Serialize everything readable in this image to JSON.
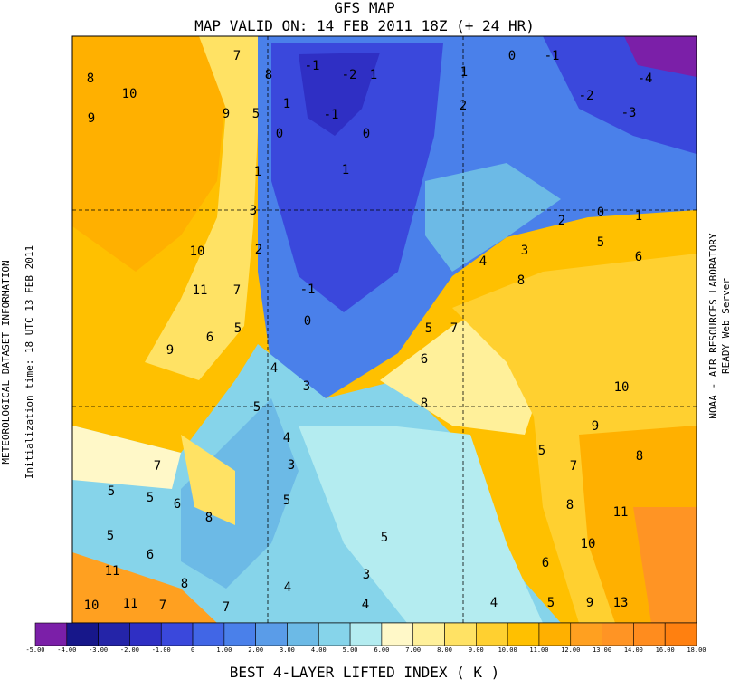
{
  "header": {
    "title": "GFS MAP",
    "subtitle": "MAP VALID ON: 14 FEB 2011 18Z (+ 24 HR)"
  },
  "left_labels": [
    "METEOROLOGICAL DATASET INFORMATION",
    "Initialization time: 18 UTC 13 FEB 2011"
  ],
  "right_labels": [
    "NOAA - AIR RESOURCES LABORATORY",
    "READY Web Server"
  ],
  "contour_labels": [
    8,
    10,
    9,
    7,
    8,
    9,
    5,
    -1,
    -2,
    1,
    1,
    0,
    -1,
    0,
    1,
    1,
    2,
    0,
    -1,
    -2,
    -4,
    -3,
    1,
    3,
    2,
    10,
    11,
    7,
    -1,
    0,
    9,
    6,
    5,
    5,
    7,
    6,
    4,
    3,
    2,
    0,
    1,
    5,
    6,
    8,
    4,
    3,
    8,
    5,
    10,
    4,
    3,
    5,
    9,
    8,
    7,
    7,
    5,
    5,
    6,
    8,
    5,
    8,
    11,
    5,
    6,
    5,
    10,
    6,
    11,
    8,
    3,
    4,
    10,
    11,
    7,
    7,
    4,
    4,
    5,
    9,
    13
  ],
  "colorbar": {
    "colors": [
      "#7b1fa8",
      "#17178a",
      "#2424a8",
      "#2f2fc4",
      "#3a48dc",
      "#4166e6",
      "#4a80ea",
      "#5a9ce8",
      "#6cbae6",
      "#86d4ea",
      "#b4ecf0",
      "#fff8c8",
      "#fff09a",
      "#ffe264",
      "#ffd030",
      "#ffc000",
      "#ffb000",
      "#ffa020",
      "#ff9424",
      "#ff8c1e",
      "#ff8010"
    ],
    "ticks": [
      {
        "value": -5,
        "label": "-5.00"
      },
      {
        "value": -4,
        "label": "-4.00"
      },
      {
        "value": -3,
        "label": "-3.00"
      },
      {
        "value": -2,
        "label": "-2.00"
      },
      {
        "value": -1,
        "label": "-1.00"
      },
      0,
      {
        "value": 1,
        "label": "1.00"
      },
      {
        "value": 2,
        "label": "2.00"
      },
      {
        "value": 3,
        "label": "3.00"
      },
      {
        "value": 4,
        "label": "4.00"
      },
      {
        "value": 5,
        "label": "5.00"
      },
      {
        "value": 6,
        "label": "6.00"
      },
      {
        "value": 7,
        "label": "7.00"
      },
      {
        "value": 8,
        "label": "8.00"
      },
      {
        "value": 9,
        "label": "9.00"
      },
      {
        "value": 10,
        "label": "10.00"
      },
      {
        "value": 11,
        "label": "11.00"
      },
      {
        "value": 12,
        "label": "12.00"
      },
      {
        "value": 13,
        "label": "13.00"
      },
      {
        "value": 14,
        "label": "14.00"
      },
      {
        "value": 16,
        "label": "16.00"
      },
      {
        "value": 18,
        "label": "18.00"
      }
    ],
    "title": "BEST 4-LAYER LIFTED INDEX (   K   )"
  }
}
